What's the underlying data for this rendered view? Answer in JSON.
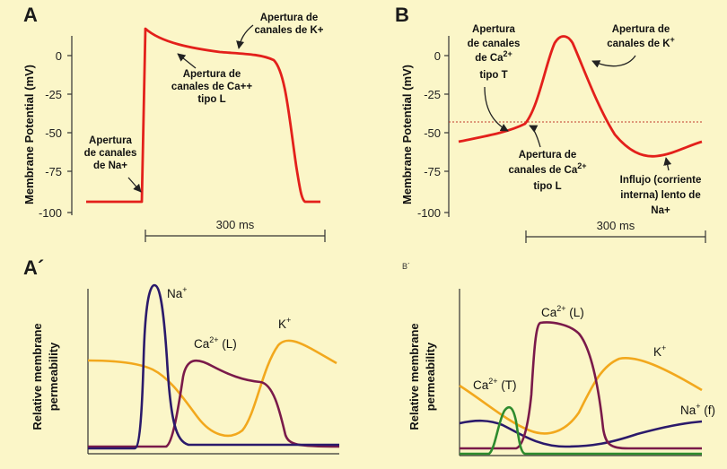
{
  "panels": {
    "A": {
      "letter": "A",
      "ylabel": "Membrane Potential (mV)",
      "ticks": [
        "0",
        "-25",
        "-50",
        "-75",
        "-100"
      ],
      "scale_label": "300 ms",
      "annotations": {
        "na": [
          "Apertura",
          "de canales",
          "de Na+"
        ],
        "ca": [
          "Apertura de",
          "canales de Ca++",
          "tipo L"
        ],
        "k": [
          "Apertura de",
          "canales de K+"
        ]
      },
      "trace_color": "#e3201b"
    },
    "B": {
      "letter": "B",
      "ylabel": "Membrane Potential (mV)",
      "ticks": [
        "0",
        "-25",
        "-50",
        "-75",
        "-100"
      ],
      "scale_label": "300 ms",
      "annotations": {
        "cat": [
          "Apertura",
          "de canales",
          "de Ca",
          "2+",
          "tipo T"
        ],
        "cal": [
          "Apertura de",
          "canales de Ca",
          "2+",
          "tipo L"
        ],
        "k": [
          "Apertura de",
          "canales de K",
          "+"
        ],
        "na": [
          "Influjo (corriente",
          "interna) lento de",
          "Na+"
        ]
      },
      "threshold_color": "#c0392b"
    },
    "A2": {
      "letter": "A´",
      "ylabel_lines": [
        "Relative membrane",
        "permeability"
      ],
      "labels": {
        "na": {
          "base": "Na",
          "sup": "+",
          "suffix": ""
        },
        "ca": {
          "base": "Ca",
          "sup": "2+",
          "suffix": " (L)"
        },
        "k": {
          "base": "K",
          "sup": "+",
          "suffix": ""
        }
      }
    },
    "B2": {
      "letter": "B´",
      "ylabel_lines": [
        "Relative membrane",
        "permeability"
      ],
      "labels": {
        "cal": {
          "base": "Ca",
          "sup": "2+",
          "suffix": " (L)"
        },
        "cat": {
          "base": "Ca",
          "sup": "2+",
          "suffix": " (T)"
        },
        "k": {
          "base": "K",
          "sup": "+",
          "suffix": ""
        },
        "na": {
          "base": "Na",
          "sup": "+",
          "suffix": " (f)"
        }
      }
    }
  },
  "colors": {
    "na": "#2b1a6b",
    "ca": "#7a1a4a",
    "k": "#f2a81d",
    "ca_t": "#2e8b2e",
    "red": "#e3201b"
  }
}
